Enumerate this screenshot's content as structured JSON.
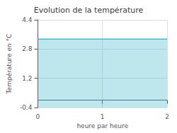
{
  "chart_data": {
    "type": "area",
    "title": "Evolution de la température",
    "xlabel": "heure par heure",
    "ylabel": "Température en °C",
    "x": [
      0,
      2
    ],
    "values": [
      3.35,
      3.35
    ],
    "color": "#44b8cc",
    "xlim": [
      0,
      2
    ],
    "ylim": [
      -0.4,
      4.4
    ],
    "xticks": [
      0,
      1,
      2
    ],
    "yticks": [
      -0.4,
      1.2,
      2.8,
      4.4
    ],
    "grid": true
  }
}
